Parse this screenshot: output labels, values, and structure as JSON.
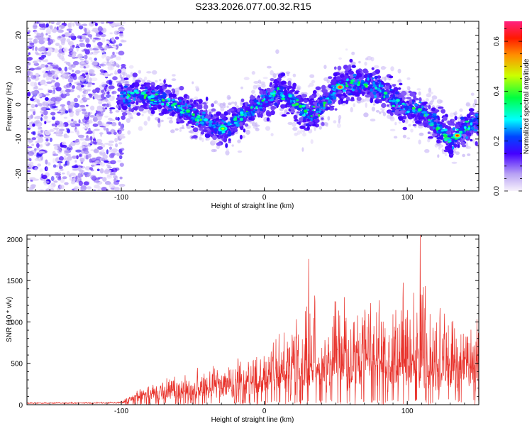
{
  "title": "S233.2026.077.00.32.R15",
  "chart_data": [
    {
      "type": "heatmap",
      "xlabel": "Height of straight line (km)",
      "ylabel": "Frequency (Hz)",
      "xlim": [
        -166,
        150
      ],
      "ylim": [
        -25,
        24
      ],
      "xticks": [
        -100,
        0,
        100
      ],
      "yticks": [
        -20,
        -10,
        0,
        10,
        20
      ],
      "colorbar": {
        "label": "Normalized spectral amplitude",
        "range": [
          0.0,
          0.68
        ],
        "ticks": [
          0.0,
          0.2,
          0.4,
          0.6
        ]
      },
      "noise_region_x": [
        -166,
        -98
      ],
      "ridge_center_hz": {
        "x": [
          -100,
          -90,
          -80,
          -70,
          -60,
          -50,
          -40,
          -30,
          -20,
          -10,
          0,
          10,
          20,
          30,
          40,
          50,
          60,
          70,
          80,
          90,
          100,
          110,
          120,
          130,
          140,
          150
        ],
        "y": [
          2,
          3,
          2,
          1,
          -1,
          -3,
          -5,
          -7,
          -5,
          -2,
          1,
          4,
          1,
          -3,
          -1,
          5,
          6,
          6,
          5,
          1,
          -1,
          -2,
          -6,
          -10,
          -7,
          -5
        ]
      },
      "peak_markers": [
        {
          "x": -29,
          "y": -7,
          "value": 0.45
        },
        {
          "x": 53,
          "y": 5,
          "value": 0.65
        },
        {
          "x": 135,
          "y": -9,
          "value": 0.6
        }
      ]
    },
    {
      "type": "line",
      "xlabel": "Height of straight line (km)",
      "ylabel": "SNR (10 * v/v)",
      "xlim": [
        -166,
        150
      ],
      "ylim": [
        0,
        2050
      ],
      "xticks": [
        -100,
        0,
        100
      ],
      "yticks": [
        0,
        500,
        1000,
        1500,
        2000
      ],
      "color": "#e8312a",
      "envelope": {
        "x": [
          -166,
          -120,
          -100,
          -90,
          -80,
          -70,
          -60,
          -50,
          -40,
          -30,
          -20,
          -10,
          0,
          10,
          20,
          30,
          40,
          50,
          60,
          70,
          80,
          90,
          100,
          110,
          120,
          130,
          140,
          150
        ],
        "baseline": [
          20,
          20,
          25,
          80,
          120,
          150,
          170,
          140,
          150,
          200,
          220,
          280,
          300,
          330,
          370,
          400,
          420,
          440,
          450,
          450,
          460,
          450,
          460,
          460,
          450,
          440,
          440,
          440
        ],
        "peak": [
          35,
          40,
          60,
          200,
          320,
          370,
          560,
          390,
          620,
          560,
          780,
          680,
          870,
          990,
          1290,
          1760,
          1150,
          1600,
          1700,
          1520,
          1540,
          1720,
          1730,
          2050,
          1830,
          1500,
          1380,
          1420
        ]
      },
      "labeled_peaks": [
        {
          "x": 31,
          "y": 1760
        },
        {
          "x": 109,
          "y": 2050
        }
      ]
    }
  ]
}
